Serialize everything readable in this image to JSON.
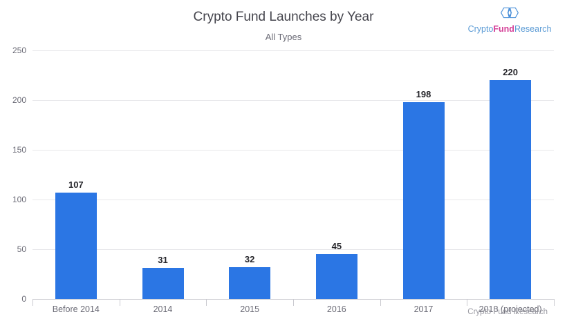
{
  "title": "Crypto Fund Launches by Year",
  "subtitle": "All Types",
  "logo": {
    "icon": "hexagon-knot-icon",
    "part_crypto": "Crypto",
    "part_fund": "Fund",
    "part_research": "Research"
  },
  "credit": "Crypto Fund Research",
  "colors": {
    "bar": "#2b76e4",
    "gridline": "#e7e7ea",
    "axis_line": "#c9c9cf",
    "axis_label": "#6b6b76",
    "value_label": "#26262b",
    "title": "#45454d",
    "logo_blue": "#5b9bd5",
    "logo_pink": "#d43f97",
    "credit_gray": "#9b9ba3"
  },
  "chart_data": {
    "type": "bar",
    "title": "Crypto Fund Launches by Year",
    "subtitle": "All Types",
    "categories": [
      "Before 2014",
      "2014",
      "2015",
      "2016",
      "2017",
      "2018 (projected)"
    ],
    "values": [
      107,
      31,
      32,
      45,
      198,
      220
    ],
    "xlabel": "",
    "ylabel": "",
    "ylim": [
      0,
      250
    ],
    "ytick_interval": 50,
    "yticks": [
      0,
      50,
      100,
      150,
      200,
      250
    ],
    "grid": true,
    "legend": "none",
    "bar_color": "#2b76e4",
    "source_note": "Crypto Fund Research"
  }
}
